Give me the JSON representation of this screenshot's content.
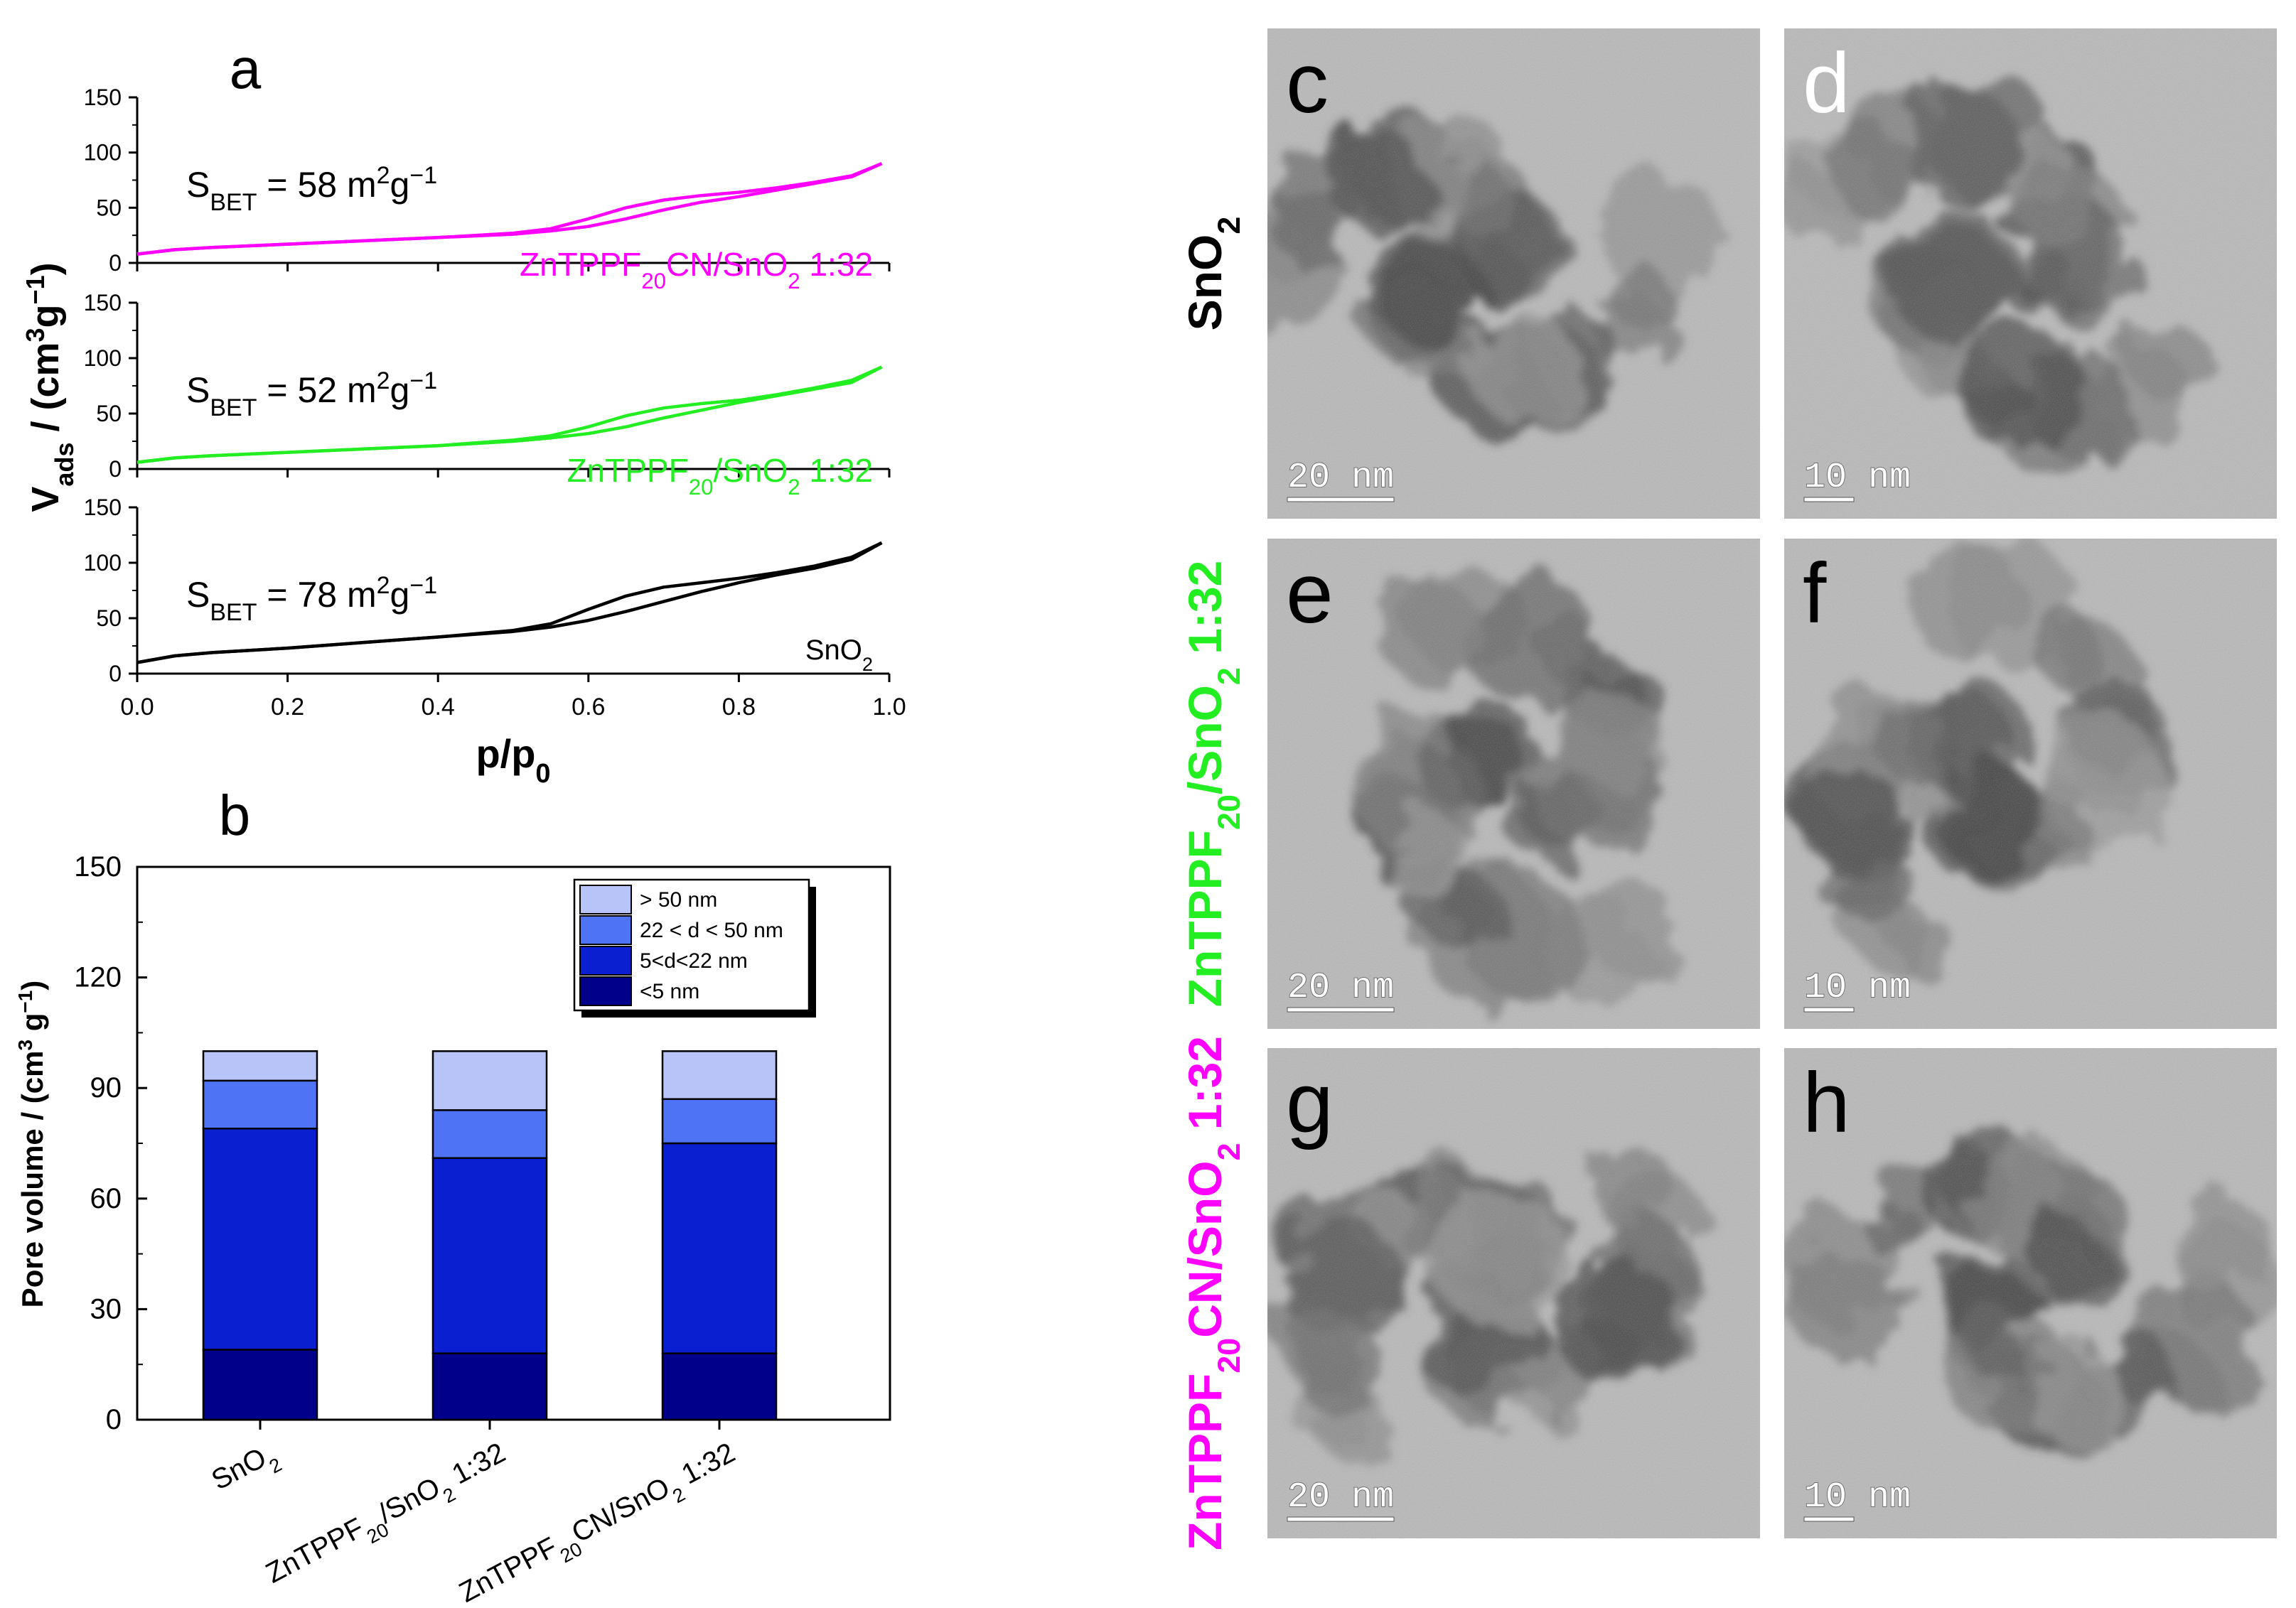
{
  "chart_data": [
    {
      "panel": "a",
      "type": "line",
      "xlabel": "p/p",
      "xlabel_sub": "0",
      "ylabel_main": "V",
      "ylabel_sub": "ads",
      "ylabel_rest": " / (cm",
      "ylabel_sup": "3",
      "ylabel_end": "g",
      "ylabel_sup2": "−1",
      "ylabel_close": ")",
      "xlim": [
        0,
        1.0
      ],
      "x_ticks": [
        "0.0",
        "0.2",
        "0.4",
        "0.6",
        "0.8",
        "1.0"
      ],
      "y_ticks": [
        "0",
        "50",
        "100",
        "150"
      ],
      "series": [
        {
          "name": "ZnTPPF20CN/SnO2 1:32",
          "color": "#ff00ff",
          "label_parts": [
            "ZnTPPF",
            "20",
            "CN/SnO",
            "2",
            " 1:32"
          ],
          "bet_value": "58",
          "x": [
            0.0,
            0.05,
            0.1,
            0.2,
            0.3,
            0.4,
            0.5,
            0.55,
            0.6,
            0.65,
            0.7,
            0.75,
            0.8,
            0.85,
            0.9,
            0.95,
            0.99
          ],
          "adsorption": [
            8,
            12,
            14,
            17,
            20,
            23,
            26,
            29,
            33,
            40,
            48,
            55,
            60,
            66,
            72,
            78,
            90
          ],
          "desorption": [
            8,
            12,
            14,
            17,
            20,
            23,
            27,
            31,
            40,
            50,
            57,
            61,
            64,
            68,
            73,
            79,
            90
          ]
        },
        {
          "name": "ZnTPPF20/SnO2 1:32",
          "color": "#22ee22",
          "label_parts": [
            "ZnTPPF",
            "20",
            "/SnO",
            "2",
            " 1:32"
          ],
          "bet_value": "52",
          "x": [
            0.0,
            0.05,
            0.1,
            0.2,
            0.3,
            0.4,
            0.5,
            0.55,
            0.6,
            0.65,
            0.7,
            0.75,
            0.8,
            0.85,
            0.9,
            0.95,
            0.99
          ],
          "adsorption": [
            6,
            10,
            12,
            15,
            18,
            21,
            25,
            28,
            32,
            38,
            46,
            53,
            60,
            66,
            72,
            78,
            92
          ],
          "desorption": [
            6,
            10,
            12,
            15,
            18,
            21,
            26,
            30,
            38,
            48,
            55,
            59,
            62,
            67,
            73,
            80,
            92
          ]
        },
        {
          "name": "SnO2",
          "color": "#000000",
          "label_parts": [
            "SnO",
            "2",
            "",
            "",
            ""
          ],
          "bet_value": "78",
          "x": [
            0.0,
            0.05,
            0.1,
            0.2,
            0.3,
            0.4,
            0.5,
            0.55,
            0.6,
            0.65,
            0.7,
            0.75,
            0.8,
            0.85,
            0.9,
            0.95,
            0.99
          ],
          "adsorption": [
            10,
            16,
            19,
            23,
            28,
            33,
            38,
            42,
            48,
            56,
            65,
            74,
            82,
            89,
            95,
            103,
            118
          ],
          "desorption": [
            10,
            16,
            19,
            23,
            28,
            33,
            39,
            45,
            58,
            70,
            78,
            82,
            86,
            91,
            97,
            105,
            118
          ]
        }
      ],
      "bet_prefix": "S",
      "bet_sub": "BET",
      "bet_eq": " = ",
      "bet_unit_a": " m",
      "bet_unit_sup": "2",
      "bet_unit_b": "g",
      "bet_unit_sup2": "−1"
    },
    {
      "panel": "b",
      "type": "bar",
      "stacked": true,
      "ylabel": "Pore volume / (cm",
      "ylabel_sup": "3",
      "ylabel_mid": " g",
      "ylabel_sup2": "−1",
      "ylabel_close": ")",
      "ylim": [
        0,
        150
      ],
      "y_ticks": [
        "0",
        "30",
        "60",
        "90",
        "120",
        "150"
      ],
      "categories": [
        "SnO2",
        "ZnTPPF20/SnO2 1:32",
        "ZnTPPF20CN/SnO2 1:32"
      ],
      "category_parts": [
        [
          "SnO",
          "2",
          "",
          "",
          ""
        ],
        [
          "ZnTPPF",
          "20",
          "/SnO",
          "2",
          " 1:32"
        ],
        [
          "ZnTPPF",
          "20",
          "CN/SnO",
          "2",
          " 1:32"
        ]
      ],
      "series": [
        {
          "name": "<5 nm",
          "color": "#00008b",
          "values": [
            19,
            18,
            18
          ]
        },
        {
          "name": "5<d<22 nm",
          "color": "#0a1fd0",
          "values": [
            60,
            53,
            57
          ]
        },
        {
          "name": "22 < d < 50 nm",
          "color": "#4f73f5",
          "values": [
            13,
            13,
            12
          ]
        },
        {
          "name": "> 50 nm",
          "color": "#b8c4f8",
          "values": [
            8,
            16,
            13
          ]
        }
      ],
      "legend_order": [
        "> 50 nm",
        "22 < d < 50 nm",
        "5<d<22 nm",
        "<5 nm"
      ],
      "legend_position": "top-right"
    }
  ],
  "tem": {
    "row_labels": [
      {
        "parts": [
          "SnO",
          "2",
          "",
          "",
          ""
        ],
        "color": "#000000"
      },
      {
        "parts": [
          "ZnTPPF",
          "20",
          "/SnO",
          "2",
          " 1:32"
        ],
        "color": "#22ee22"
      },
      {
        "parts": [
          "ZnTPPF",
          "20",
          "CN/SnO",
          "2",
          " 1:32"
        ],
        "color": "#ff00ff"
      }
    ],
    "panels": [
      {
        "letter": "c",
        "scale": "20 nm",
        "letter_color": "#000000"
      },
      {
        "letter": "d",
        "scale": "10 nm",
        "letter_color": "#ffffff"
      },
      {
        "letter": "e",
        "scale": "20 nm",
        "letter_color": "#000000"
      },
      {
        "letter": "f",
        "scale": "10 nm",
        "letter_color": "#000000"
      },
      {
        "letter": "g",
        "scale": "20 nm",
        "letter_color": "#000000"
      },
      {
        "letter": "h",
        "scale": "10 nm",
        "letter_color": "#000000"
      }
    ]
  }
}
